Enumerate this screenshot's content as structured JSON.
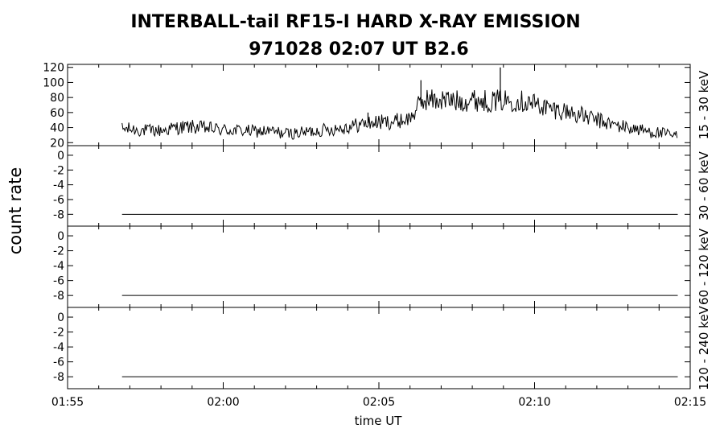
{
  "chart_data": {
    "type": "line",
    "title": {
      "line1": "INTERBALL-tail  RF15-I  HARD  X-RAY  EMISSION",
      "line2": "971028      02:07 UT      B2.6"
    },
    "ylabel": "count rate",
    "xlabel": "time UT",
    "x_range_minutes": [
      0,
      20
    ],
    "x_ticks": [
      {
        "minute": 0,
        "label": "01:55"
      },
      {
        "minute": 5,
        "label": "02:00"
      },
      {
        "minute": 10,
        "label": "02:05"
      },
      {
        "minute": 15,
        "label": "02:10"
      },
      {
        "minute": 20,
        "label": "02:15"
      }
    ],
    "data_x_range_minutes": [
      1.75,
      19.6
    ],
    "panels": [
      {
        "name": "15 - 30 keV",
        "ylim": [
          16,
          124
        ],
        "yticks": [
          20,
          40,
          60,
          80,
          100,
          120
        ],
        "ytick_labels": [
          "20",
          "40",
          "60",
          "80",
          "100",
          "120"
        ],
        "series": {
          "x_minutes": [
            1.75,
            2.0,
            2.5,
            3.0,
            3.5,
            4.0,
            4.5,
            5.0,
            5.5,
            6.0,
            6.5,
            7.0,
            7.5,
            8.0,
            8.5,
            9.0,
            9.5,
            10.0,
            10.5,
            11.0,
            11.3,
            11.5,
            11.8,
            12.0,
            12.5,
            13.0,
            13.5,
            14.0,
            14.5,
            15.0,
            15.5,
            16.0,
            16.5,
            17.0,
            17.5,
            18.0,
            18.5,
            19.0,
            19.6
          ],
          "counts": [
            38,
            38,
            36,
            36,
            40,
            41,
            39,
            37,
            36,
            35,
            35,
            32,
            33,
            36,
            38,
            41,
            45,
            47,
            48,
            52,
            70,
            78,
            76,
            77,
            75,
            77,
            75,
            76,
            76,
            72,
            65,
            62,
            56,
            50,
            44,
            40,
            36,
            33,
            28
          ]
        },
        "spikes": [
          {
            "x_minute": 11.35,
            "value": 103
          },
          {
            "x_minute": 13.9,
            "value": 120
          },
          {
            "x_minute": 9.65,
            "value": 60
          }
        ]
      },
      {
        "name": "30 - 60 keV",
        "ylim": [
          -9.6,
          1.3
        ],
        "yticks": [
          -8,
          -6,
          -4,
          -2,
          0
        ],
        "ytick_labels": [
          "-8",
          "-6",
          "-4",
          "-2",
          "0"
        ],
        "series": {
          "x_minutes": [
            1.75,
            19.6
          ],
          "counts": [
            -8,
            -8
          ]
        }
      },
      {
        "name": "60 - 120 keV",
        "ylim": [
          -9.6,
          1.3
        ],
        "yticks": [
          -8,
          -6,
          -4,
          -2,
          0
        ],
        "ytick_labels": [
          "-8",
          "-6",
          "-4",
          "-2",
          "0"
        ],
        "series": {
          "x_minutes": [
            1.75,
            19.6
          ],
          "counts": [
            -8,
            -8
          ]
        }
      },
      {
        "name": "120 - 240 keV",
        "ylim": [
          -9.6,
          1.3
        ],
        "yticks": [
          -8,
          -6,
          -4,
          -2,
          0
        ],
        "ytick_labels": [
          "-8",
          "-6",
          "-4",
          "-2",
          "0"
        ],
        "series": {
          "x_minutes": [
            1.75,
            19.6
          ],
          "counts": [
            -8,
            -8
          ]
        }
      }
    ]
  }
}
